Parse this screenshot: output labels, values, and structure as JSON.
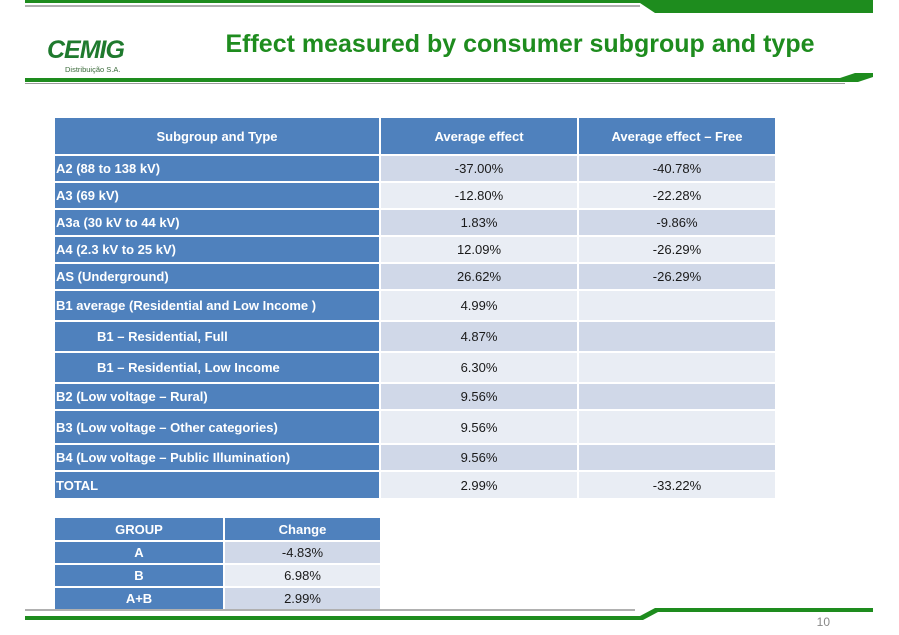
{
  "header": {
    "logo_text": "CEMIG",
    "logo_subtext": "Distribuição S.A.",
    "title": "Effect measured by consumer subgroup and type"
  },
  "main_table": {
    "columns": [
      "Subgroup and Type",
      "Average effect",
      "Average effect – Free"
    ],
    "rows": [
      {
        "label": "A2  (88 to 138 kV)",
        "avg": "-37.00%",
        "free": "-40.78%"
      },
      {
        "label": "A3  (69 kV)",
        "avg": "-12.80%",
        "free": "-22.28%"
      },
      {
        "label": "A3a (30 kV  to 44 kV)",
        "avg": "1.83%",
        "free": "-9.86%"
      },
      {
        "label": "A4  (2.3 kV to 25 kV)",
        "avg": "12.09%",
        "free": "-26.29%"
      },
      {
        "label": "AS (Underground)",
        "avg": "26.62%",
        "free": "-26.29%"
      },
      {
        "label": "B1 average (Residential and Low Income )",
        "avg": "4.99%",
        "free": ""
      },
      {
        "label": "B1 – Residential, Full",
        "avg": "4.87%",
        "free": ""
      },
      {
        "label": "B1 – Residential, Low Income",
        "avg": "6.30%",
        "free": ""
      },
      {
        "label": "B2 (Low voltage – Rural)",
        "avg": "9.56%",
        "free": ""
      },
      {
        "label": "B3 (Low voltage – Other categories)",
        "avg": "9.56%",
        "free": ""
      },
      {
        "label": "B4 (Low voltage – Public Illumination)",
        "avg": "9.56%",
        "free": ""
      },
      {
        "label": "TOTAL",
        "avg": "2.99%",
        "free": "-33.22%"
      }
    ]
  },
  "group_table": {
    "columns": [
      "GROUP",
      "Change"
    ],
    "rows": [
      {
        "group": "A",
        "change": "-4.83%"
      },
      {
        "group": "B",
        "change": "6.98%"
      },
      {
        "group": "A+B",
        "change": "2.99%"
      }
    ]
  },
  "footer": {
    "page_number": "10"
  },
  "colors": {
    "header_blue": "#4f81bd",
    "row_light": "#e9edf4",
    "row_dark": "#d0d8e8",
    "brand_green": "#1e8c1e"
  }
}
